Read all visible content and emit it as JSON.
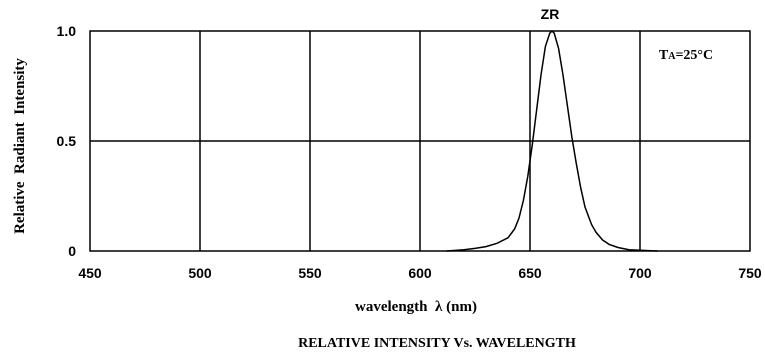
{
  "chart_data": {
    "type": "line",
    "title": "RELATIVE INTENSITY Vs. WAVELENGTH",
    "xlabel": "wavelength  λ (nm)",
    "ylabel": "Relative  Radiant  Intensity",
    "xlim": [
      450,
      750
    ],
    "ylim": [
      0,
      1.0
    ],
    "x_ticks": [
      450,
      500,
      550,
      600,
      650,
      700,
      750
    ],
    "x_tick_labels": [
      "450",
      "500",
      "550",
      "600",
      "650",
      "700",
      "750"
    ],
    "y_ticks": [
      0,
      0.5,
      1.0
    ],
    "y_tick_labels": [
      "0",
      "0.5",
      "1.0"
    ],
    "grid": true,
    "annotations": {
      "peak_label": "ZR",
      "condition_prefix": "T",
      "condition_subscript": "A",
      "condition_suffix": "=25°C"
    },
    "series": [
      {
        "name": "",
        "color": "#000000",
        "x": [
          612,
          620,
          625,
          630,
          635,
          640,
          643,
          645,
          647,
          649,
          651,
          653,
          655,
          657,
          659,
          660,
          661,
          663,
          665,
          667,
          669,
          671,
          673,
          675,
          678,
          680,
          683,
          686,
          690,
          695,
          700,
          705,
          708
        ],
        "y": [
          0.0,
          0.006,
          0.012,
          0.02,
          0.035,
          0.06,
          0.1,
          0.15,
          0.23,
          0.34,
          0.48,
          0.64,
          0.8,
          0.93,
          0.99,
          1.0,
          0.99,
          0.92,
          0.8,
          0.66,
          0.52,
          0.4,
          0.29,
          0.2,
          0.12,
          0.085,
          0.05,
          0.03,
          0.016,
          0.006,
          0.003,
          0.001,
          0.0
        ]
      }
    ]
  }
}
